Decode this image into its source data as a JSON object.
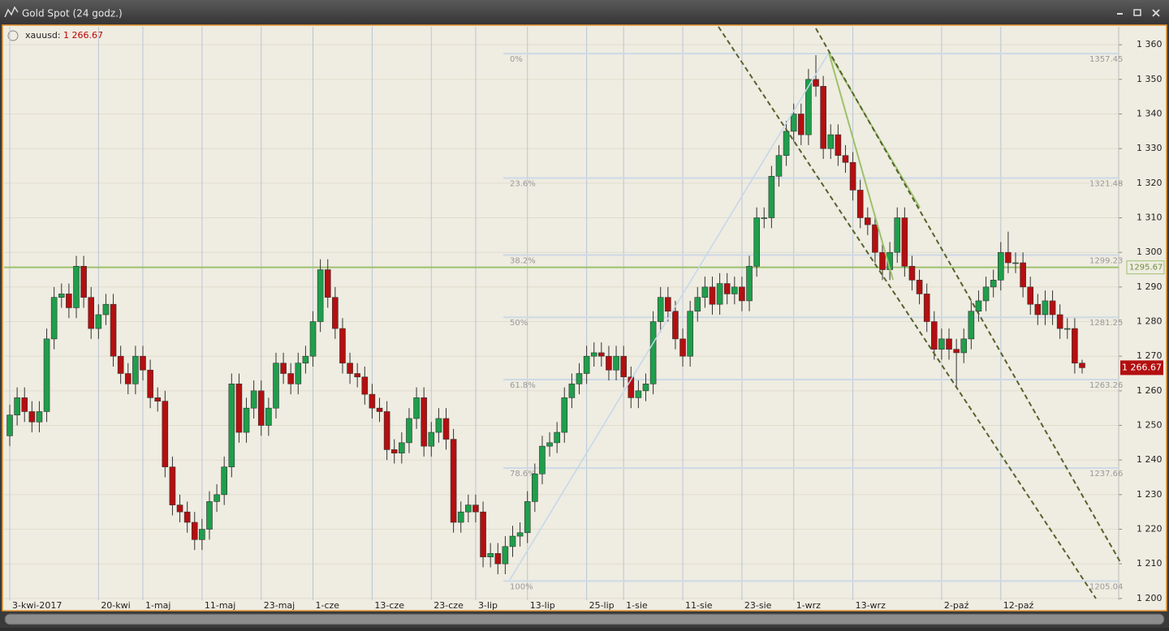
{
  "chart_data": {
    "type": "candlestick",
    "title": "Gold Spot (24 godz.)",
    "symbol": "xauusd:",
    "last": {
      "value": 1266.67,
      "label": "1 266.67"
    },
    "up_color": "#1f9e4c",
    "down_color": "#b40f10",
    "categories": [
      "3-kwi-2017",
      null,
      null,
      null,
      null,
      null,
      null,
      null,
      null,
      null,
      null,
      null,
      "20-kwi",
      null,
      null,
      null,
      null,
      null,
      "1-maj",
      null,
      null,
      null,
      null,
      null,
      null,
      null,
      "11-maj",
      null,
      null,
      null,
      null,
      null,
      null,
      null,
      "23-maj",
      null,
      null,
      null,
      null,
      null,
      null,
      "1-cze",
      null,
      null,
      null,
      null,
      null,
      null,
      null,
      "13-cze",
      null,
      null,
      null,
      null,
      null,
      null,
      null,
      "23-cze",
      null,
      null,
      null,
      null,
      null,
      "3-lip",
      null,
      null,
      null,
      null,
      null,
      null,
      "13-lip",
      null,
      null,
      null,
      null,
      null,
      null,
      null,
      "25-lip",
      null,
      null,
      null,
      null,
      "1-sie",
      null,
      null,
      null,
      null,
      null,
      null,
      null,
      "11-sie",
      null,
      null,
      null,
      null,
      null,
      null,
      null,
      "23-sie",
      null,
      null,
      null,
      null,
      null,
      null,
      "1-wrz",
      null,
      null,
      null,
      null,
      null,
      null,
      null,
      "13-wrz",
      null,
      null,
      null,
      null,
      null,
      null,
      null,
      null,
      null,
      null,
      null,
      "2-paź",
      null,
      null,
      null,
      null,
      null,
      null,
      null,
      "12-paź",
      null,
      null,
      null,
      null,
      null,
      null,
      null,
      null,
      null,
      null,
      null
    ],
    "open": [
      1247,
      1253,
      1258,
      1254,
      1251,
      1254,
      1275,
      1287,
      1288,
      1284,
      1296,
      1287,
      1278,
      1282,
      1285,
      1270,
      1265,
      1262,
      1270,
      1266,
      1258,
      1257,
      1238,
      1227,
      1225,
      1222,
      1217,
      1220,
      1228,
      1230,
      1238,
      1262,
      1248,
      1255,
      1260,
      1250,
      1255,
      1268,
      1265,
      1262,
      1268,
      1270,
      1280,
      1295,
      1287,
      1278,
      1268,
      1265,
      1264,
      1259,
      1255,
      1254,
      1243,
      1242,
      1245,
      1252,
      1258,
      1244,
      1248,
      1252,
      1246,
      1222,
      1225,
      1227,
      1225,
      1212,
      1213,
      1210,
      1215,
      1218,
      1219,
      1228,
      1236,
      1244,
      1245,
      1248,
      1258,
      1262,
      1265,
      1270,
      1271,
      1270,
      1266,
      1270,
      1264,
      1258,
      1260,
      1262,
      1280,
      1287,
      1283,
      1275,
      1270,
      1283,
      1287,
      1290,
      1285,
      1291,
      1288,
      1290,
      1286,
      1296,
      1310,
      1310,
      1322,
      1328,
      1335,
      1340,
      1334,
      1350,
      1348,
      1330,
      1334,
      1328,
      1326,
      1318,
      1310,
      1308,
      1300,
      1295,
      1300,
      1310,
      1296,
      1292,
      1288,
      1280,
      1272,
      1275,
      1272,
      1271,
      1275,
      1283,
      1286,
      1290,
      1292,
      1300,
      1297,
      1297,
      1290,
      1285,
      1282,
      1286,
      1282,
      1278,
      1278,
      1268
    ],
    "high": [
      1256,
      1261,
      1261,
      1257,
      1257,
      1278,
      1290,
      1291,
      1291,
      1299,
      1299,
      1290,
      1285,
      1288,
      1288,
      1273,
      1268,
      1273,
      1273,
      1269,
      1261,
      1260,
      1241,
      1230,
      1228,
      1225,
      1223,
      1231,
      1233,
      1241,
      1265,
      1265,
      1258,
      1263,
      1263,
      1258,
      1271,
      1271,
      1268,
      1271,
      1273,
      1283,
      1298,
      1298,
      1290,
      1281,
      1271,
      1268,
      1267,
      1262,
      1258,
      1257,
      1246,
      1248,
      1255,
      1261,
      1261,
      1251,
      1255,
      1255,
      1249,
      1228,
      1230,
      1230,
      1228,
      1216,
      1216,
      1218,
      1221,
      1222,
      1231,
      1239,
      1247,
      1248,
      1251,
      1261,
      1265,
      1268,
      1273,
      1274,
      1274,
      1273,
      1273,
      1273,
      1267,
      1263,
      1265,
      1283,
      1290,
      1290,
      1286,
      1278,
      1286,
      1290,
      1293,
      1293,
      1294,
      1294,
      1293,
      1293,
      1299,
      1313,
      1313,
      1325,
      1331,
      1338,
      1343,
      1343,
      1353,
      1357,
      1351,
      1337,
      1337,
      1331,
      1329,
      1321,
      1313,
      1311,
      1303,
      1303,
      1313,
      1313,
      1299,
      1295,
      1291,
      1283,
      1278,
      1278,
      1275,
      1278,
      1286,
      1289,
      1293,
      1295,
      1303,
      1306,
      1300,
      1300,
      1293,
      1288,
      1289,
      1289,
      1285,
      1281,
      1281,
      1269
    ],
    "low": [
      1244,
      1250,
      1251,
      1248,
      1248,
      1251,
      1272,
      1284,
      1281,
      1281,
      1284,
      1275,
      1275,
      1279,
      1267,
      1262,
      1259,
      1259,
      1263,
      1255,
      1254,
      1235,
      1224,
      1222,
      1219,
      1214,
      1214,
      1217,
      1225,
      1227,
      1235,
      1245,
      1245,
      1252,
      1247,
      1247,
      1252,
      1262,
      1259,
      1259,
      1265,
      1267,
      1277,
      1284,
      1275,
      1265,
      1262,
      1261,
      1256,
      1252,
      1251,
      1240,
      1239,
      1239,
      1242,
      1249,
      1241,
      1241,
      1245,
      1243,
      1219,
      1219,
      1222,
      1222,
      1209,
      1209,
      1207,
      1207,
      1212,
      1215,
      1216,
      1225,
      1233,
      1241,
      1242,
      1245,
      1255,
      1259,
      1262,
      1267,
      1267,
      1263,
      1263,
      1261,
      1255,
      1255,
      1257,
      1259,
      1277,
      1280,
      1272,
      1267,
      1267,
      1280,
      1284,
      1282,
      1282,
      1285,
      1285,
      1283,
      1283,
      1293,
      1307,
      1307,
      1319,
      1325,
      1332,
      1331,
      1331,
      1345,
      1327,
      1327,
      1325,
      1323,
      1315,
      1307,
      1305,
      1297,
      1292,
      1292,
      1297,
      1293,
      1289,
      1285,
      1277,
      1269,
      1269,
      1269,
      1261,
      1268,
      1272,
      1280,
      1283,
      1287,
      1289,
      1294,
      1294,
      1287,
      1282,
      1279,
      1279,
      1279,
      1275,
      1275,
      1265,
      1265
    ],
    "close": [
      1253,
      1258,
      1254,
      1251,
      1254,
      1275,
      1287,
      1288,
      1284,
      1296,
      1287,
      1278,
      1282,
      1285,
      1270,
      1265,
      1262,
      1270,
      1266,
      1258,
      1257,
      1238,
      1227,
      1225,
      1222,
      1217,
      1220,
      1228,
      1230,
      1238,
      1262,
      1248,
      1255,
      1260,
      1250,
      1255,
      1268,
      1265,
      1262,
      1268,
      1270,
      1280,
      1295,
      1287,
      1278,
      1268,
      1265,
      1264,
      1259,
      1255,
      1254,
      1243,
      1242,
      1245,
      1252,
      1258,
      1244,
      1248,
      1252,
      1246,
      1222,
      1225,
      1227,
      1225,
      1212,
      1213,
      1210,
      1215,
      1218,
      1219,
      1228,
      1236,
      1244,
      1245,
      1248,
      1258,
      1262,
      1265,
      1270,
      1271,
      1270,
      1266,
      1270,
      1264,
      1258,
      1260,
      1262,
      1280,
      1287,
      1283,
      1275,
      1270,
      1283,
      1287,
      1290,
      1285,
      1291,
      1288,
      1290,
      1286,
      1296,
      1310,
      1310,
      1322,
      1328,
      1335,
      1340,
      1334,
      1350,
      1348,
      1330,
      1334,
      1328,
      1326,
      1318,
      1310,
      1308,
      1300,
      1295,
      1300,
      1310,
      1296,
      1292,
      1288,
      1280,
      1272,
      1275,
      1272,
      1271,
      1275,
      1283,
      1286,
      1290,
      1292,
      1300,
      1297,
      1297,
      1290,
      1285,
      1282,
      1286,
      1282,
      1278,
      1278,
      1268,
      1266.67
    ],
    "ylim": [
      1199.5,
      1365.2
    ],
    "yticks": [
      {
        "value": 1200,
        "label": "1 200"
      },
      {
        "value": 1210,
        "label": "1 210"
      },
      {
        "value": 1220,
        "label": "1 220"
      },
      {
        "value": 1230,
        "label": "1 230"
      },
      {
        "value": 1240,
        "label": "1 240"
      },
      {
        "value": 1250,
        "label": "1 250"
      },
      {
        "value": 1260,
        "label": "1 260"
      },
      {
        "value": 1270,
        "label": "1 270"
      },
      {
        "value": 1280,
        "label": "1 280"
      },
      {
        "value": 1290,
        "label": "1 290"
      },
      {
        "value": 1300,
        "label": "1 300"
      },
      {
        "value": 1310,
        "label": "1 310"
      },
      {
        "value": 1320,
        "label": "1 320"
      },
      {
        "value": 1330,
        "label": "1 330"
      },
      {
        "value": 1340,
        "label": "1 340"
      },
      {
        "value": 1350,
        "label": "1 350"
      },
      {
        "value": 1360,
        "label": "1 360"
      }
    ],
    "grid": true,
    "fib_levels": [
      {
        "label": "0%",
        "value": 1357.45
      },
      {
        "label": "23.6%",
        "value": 1321.48
      },
      {
        "label": "38.2%",
        "value": 1299.23
      },
      {
        "label": "50%",
        "value": 1281.25
      },
      {
        "label": "61.8%",
        "value": 1263.26
      },
      {
        "label": "78.6%",
        "value": 1237.66
      },
      {
        "label": "100%",
        "value": 1205.04
      }
    ],
    "hline": {
      "value": 1295.67,
      "color": "#9cc26c"
    }
  }
}
